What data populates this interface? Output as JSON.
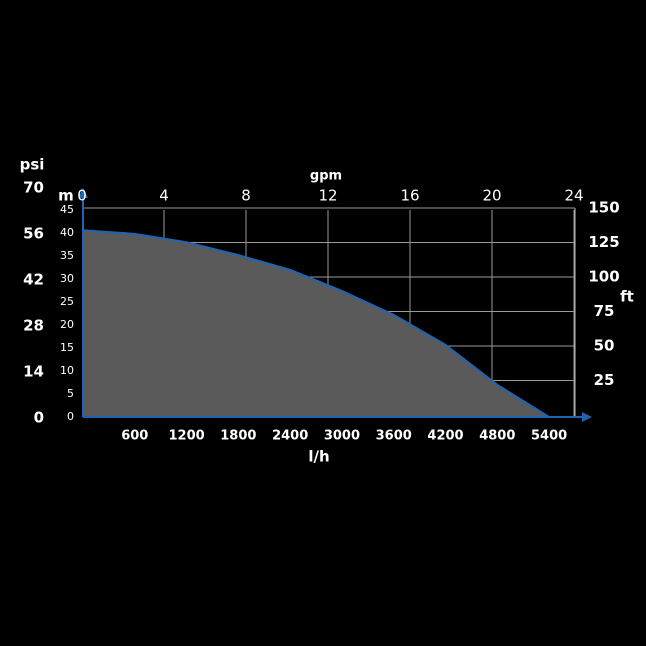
{
  "chart_data": {
    "type": "area",
    "x": [
      0,
      600,
      1200,
      1800,
      2400,
      3000,
      3600,
      4200,
      4800,
      5400
    ],
    "values": [
      40.6,
      39.8,
      38,
      35.2,
      32,
      27.4,
      22.2,
      15.7,
      7,
      0
    ],
    "color": "#5a5a5a",
    "line_color": "#1f63b3",
    "x_label": "l/h",
    "xlim": [
      0,
      5700
    ],
    "xticks": [
      600,
      1200,
      1800,
      2400,
      3000,
      3600,
      4200,
      4800,
      5400
    ],
    "y_label": "m",
    "ylim": [
      0,
      45
    ],
    "yticks": [
      0,
      5,
      10,
      15,
      20,
      25,
      30,
      35,
      40,
      45
    ],
    "x2label": "gpm",
    "x2lim": [
      0,
      24
    ],
    "x2ticks": [
      0,
      4,
      8,
      12,
      16,
      20,
      24
    ],
    "y2label": "ft",
    "y2lim": [
      0,
      150
    ],
    "y2ticks": [
      25,
      50,
      75,
      100,
      125,
      150
    ],
    "y3label": "psi",
    "y3lim": [
      0,
      70
    ],
    "y3ticks": [
      0,
      14,
      28,
      42,
      56,
      70
    ],
    "grid": true
  }
}
